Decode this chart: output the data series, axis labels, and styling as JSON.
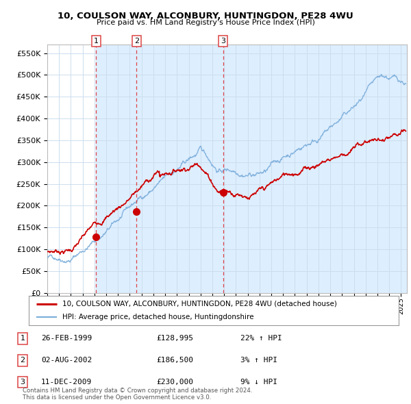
{
  "title": "10, COULSON WAY, ALCONBURY, HUNTINGDON, PE28 4WU",
  "subtitle": "Price paid vs. HM Land Registry's House Price Index (HPI)",
  "ylim": [
    0,
    570000
  ],
  "yticks": [
    0,
    50000,
    100000,
    150000,
    200000,
    250000,
    300000,
    350000,
    400000,
    450000,
    500000,
    550000
  ],
  "xlim_start": 1995.0,
  "xlim_end": 2025.5,
  "sale_dates": [
    1999.15,
    2002.58,
    2009.92
  ],
  "sale_prices": [
    128995,
    186500,
    230000
  ],
  "sale_labels": [
    "1",
    "2",
    "3"
  ],
  "red_line_color": "#cc0000",
  "blue_line_color": "#7aadda",
  "shade_color": "#ddeeff",
  "dashed_line_color": "#dd4444",
  "legend_entries": [
    "10, COULSON WAY, ALCONBURY, HUNTINGDON, PE28 4WU (detached house)",
    "HPI: Average price, detached house, Huntingdonshire"
  ],
  "table_rows": [
    {
      "num": "1",
      "date": "26-FEB-1999",
      "price": "£128,995",
      "change": "22% ↑ HPI"
    },
    {
      "num": "2",
      "date": "02-AUG-2002",
      "price": "£186,500",
      "change": "3% ↑ HPI"
    },
    {
      "num": "3",
      "date": "11-DEC-2009",
      "price": "£230,000",
      "change": "9% ↓ HPI"
    }
  ],
  "footer": "Contains HM Land Registry data © Crown copyright and database right 2024.\nThis data is licensed under the Open Government Licence v3.0.",
  "background_color": "#ffffff",
  "plot_bg_color": "#ffffff",
  "grid_color": "#ccddee"
}
